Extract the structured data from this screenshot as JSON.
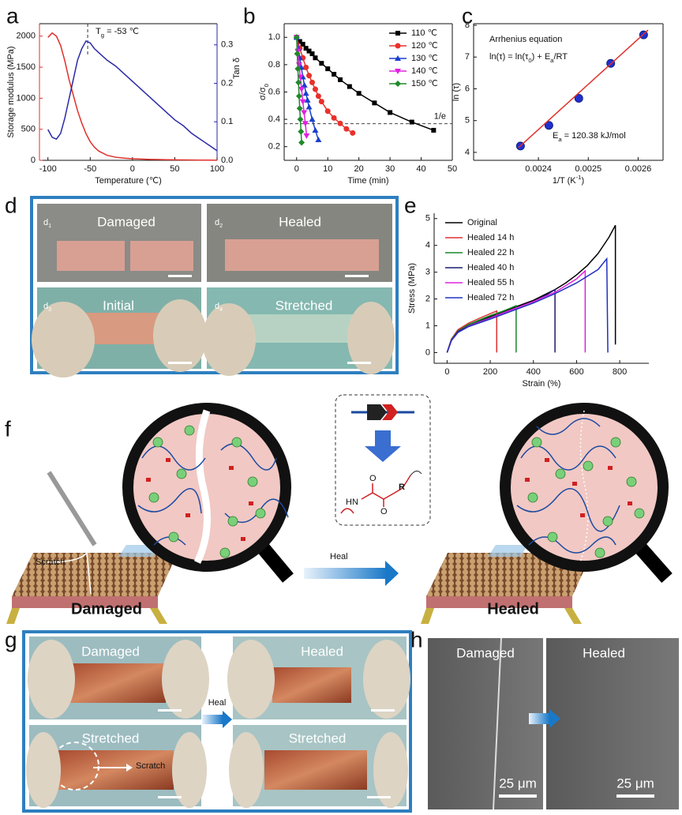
{
  "chart_data": [
    {
      "type": "line",
      "label": "a",
      "xlabel": "Temperature (℃)",
      "ylabel": "Storage modulus (MPa)",
      "y2label": "Tan δ",
      "x": [
        -100,
        -95,
        -90,
        -85,
        -80,
        -75,
        -70,
        -65,
        -60,
        -55,
        -50,
        -45,
        -40,
        -30,
        -20,
        -10,
        0,
        10,
        20,
        30,
        40,
        50,
        60,
        70,
        80,
        90,
        100
      ],
      "series": [
        {
          "color": "#e0302a",
          "values": [
            1980,
            2050,
            2000,
            1850,
            1600,
            1300,
            1050,
            800,
            600,
            430,
            300,
            210,
            150,
            80,
            50,
            35,
            25,
            20,
            15,
            12,
            10,
            8,
            6,
            5,
            4,
            3,
            2
          ]
        },
        {
          "color": "#2a2aa8",
          "axis": "y2",
          "values": [
            0.08,
            0.06,
            0.055,
            0.07,
            0.11,
            0.16,
            0.21,
            0.26,
            0.29,
            0.31,
            0.305,
            0.29,
            0.28,
            0.26,
            0.245,
            0.225,
            0.205,
            0.185,
            0.165,
            0.145,
            0.125,
            0.105,
            0.09,
            0.07,
            0.055,
            0.04,
            0.025
          ]
        }
      ],
      "xlim": [
        -110,
        100
      ],
      "xticks": [
        -100,
        -50,
        0,
        50,
        100
      ],
      "ylim": [
        0,
        2200
      ],
      "yticks": [
        0,
        500,
        1000,
        1500,
        2000
      ],
      "y2lim": [
        0,
        0.355
      ],
      "y2ticks": [
        {
          "value": 0,
          "label": "0.0"
        },
        0.1,
        0.2,
        0.3
      ],
      "annotation_x": -53,
      "annotation": [
        {
          "t": "T"
        },
        {
          "t": "g",
          "sub": true
        },
        {
          "t": " = -53 ℃"
        }
      ]
    },
    {
      "type": "line",
      "label": "b",
      "xlabel": "Time (min)",
      "ylabel": [
        {
          "t": "σ/σ"
        },
        {
          "t": "0",
          "sub": true
        }
      ],
      "legend": "upper right",
      "series": [
        {
          "name": "110 ℃",
          "color": "#000000",
          "marker": "square",
          "x": [
            0,
            1,
            2,
            3,
            4,
            5,
            6,
            8,
            10,
            12,
            14,
            17,
            20,
            25,
            30,
            37,
            44
          ],
          "values": [
            1.0,
            0.97,
            0.95,
            0.92,
            0.9,
            0.88,
            0.85,
            0.81,
            0.77,
            0.73,
            0.69,
            0.64,
            0.59,
            0.52,
            0.45,
            0.38,
            0.32
          ]
        },
        {
          "name": "120 ℃",
          "color": "#e8302a",
          "marker": "circle",
          "x": [
            0,
            1,
            2,
            3,
            4,
            5,
            6,
            7,
            8,
            10,
            12,
            14,
            16,
            18
          ],
          "values": [
            1.0,
            0.92,
            0.85,
            0.78,
            0.72,
            0.67,
            0.62,
            0.57,
            0.53,
            0.46,
            0.41,
            0.37,
            0.33,
            0.3
          ]
        },
        {
          "name": "130 ℃",
          "color": "#1a3fd0",
          "marker": "triangle",
          "x": [
            0,
            0.5,
            1,
            1.5,
            2,
            2.5,
            3,
            3.5,
            4,
            5,
            6,
            7
          ],
          "values": [
            1.0,
            0.92,
            0.85,
            0.78,
            0.71,
            0.65,
            0.59,
            0.54,
            0.49,
            0.4,
            0.32,
            0.25
          ]
        },
        {
          "name": "140 ℃",
          "color": "#e020e0",
          "marker": "triangle-down",
          "x": [
            0,
            0.4,
            0.8,
            1.2,
            1.6,
            2,
            2.4,
            2.8,
            3.2
          ],
          "values": [
            1.0,
            0.9,
            0.8,
            0.71,
            0.62,
            0.53,
            0.45,
            0.37,
            0.28
          ]
        },
        {
          "name": "150 ℃",
          "color": "#1f8a2a",
          "marker": "diamond",
          "x": [
            0,
            0.2,
            0.4,
            0.6,
            0.8,
            1.0,
            1.2,
            1.4,
            1.6
          ],
          "values": [
            1.0,
            0.88,
            0.77,
            0.67,
            0.57,
            0.48,
            0.4,
            0.31,
            0.23
          ]
        }
      ],
      "xlim": [
        -4,
        50
      ],
      "xticks": [
        0,
        10,
        20,
        30,
        40,
        50
      ],
      "ylim": [
        0.1,
        1.1
      ],
      "yticks": [
        0.2,
        0.4,
        0.6,
        0.8,
        {
          "value": 1,
          "label": "1.0"
        }
      ],
      "hline": {
        "value": 0.368,
        "label": "1/e"
      }
    },
    {
      "type": "line",
      "label": "c",
      "xlabel": [
        {
          "t": "1/T (K"
        },
        {
          "t": "-1",
          "sup": true
        },
        {
          "t": ")"
        }
      ],
      "ylabel": "ln (τ)",
      "series": [
        {
          "color": "#2030d0",
          "marker": "circle",
          "line": false,
          "x": [
            0.002364,
            0.002421,
            0.002481,
            0.002545,
            0.002611
          ],
          "values": [
            4.2,
            4.85,
            5.7,
            6.8,
            7.7
          ]
        },
        {
          "color": "#e0302a",
          "x": [
            0.00236,
            0.00262
          ],
          "values": [
            4.15,
            7.85
          ]
        }
      ],
      "xlim": [
        0.00227,
        0.00265
      ],
      "xticks": [
        0.0024,
        0.0025,
        0.0026
      ],
      "ylim": [
        3.75,
        8.05
      ],
      "yticks": [
        4,
        5,
        6,
        7,
        8
      ],
      "notes": [
        "Arrhenius equation",
        [
          {
            "t": "ln(τ) = ln(τ"
          },
          {
            "t": "0",
            "sub": true
          },
          {
            "t": ") + E"
          },
          {
            "t": "a",
            "sub": true
          },
          {
            "t": "/RT"
          }
        ],
        [
          {
            "t": "E"
          },
          {
            "t": "a",
            "sub": true
          },
          {
            "t": " = 120.38 kJ/mol"
          }
        ]
      ]
    },
    {
      "type": "line",
      "label": "e",
      "xlabel": "Strain (%)",
      "ylabel": "Stress (MPa)",
      "legend": "upper left",
      "series": [
        {
          "name": "Original",
          "color": "#000000",
          "x": [
            0,
            20,
            50,
            100,
            150,
            200,
            250,
            300,
            350,
            400,
            450,
            500,
            550,
            600,
            650,
            700,
            750,
            780,
            780
          ],
          "values": [
            0,
            0.5,
            0.8,
            1.05,
            1.2,
            1.35,
            1.5,
            1.65,
            1.8,
            1.95,
            2.15,
            2.35,
            2.6,
            2.9,
            3.25,
            3.7,
            4.3,
            4.75,
            0.3
          ]
        },
        {
          "name": "Healed 14 h",
          "color": "#e03030",
          "x": [
            0,
            20,
            50,
            100,
            150,
            200,
            230,
            230
          ],
          "values": [
            0,
            0.5,
            0.85,
            1.1,
            1.28,
            1.45,
            1.55,
            0
          ]
        },
        {
          "name": "Healed 22 h",
          "color": "#1a8a2a",
          "x": [
            0,
            20,
            50,
            100,
            150,
            200,
            250,
            300,
            320,
            320
          ],
          "values": [
            0,
            0.48,
            0.8,
            1.05,
            1.22,
            1.38,
            1.52,
            1.68,
            1.75,
            0
          ]
        },
        {
          "name": "Healed 40 h",
          "color": "#1a1a70",
          "x": [
            0,
            20,
            50,
            100,
            200,
            300,
            400,
            450,
            500,
            500
          ],
          "values": [
            0,
            0.45,
            0.78,
            1.0,
            1.3,
            1.6,
            1.9,
            2.1,
            2.35,
            0
          ]
        },
        {
          "name": "Healed 55 h",
          "color": "#e020e0",
          "x": [
            0,
            20,
            50,
            100,
            200,
            300,
            400,
            500,
            600,
            640,
            640
          ],
          "values": [
            0,
            0.45,
            0.75,
            0.98,
            1.28,
            1.6,
            1.9,
            2.25,
            2.75,
            3.05,
            0
          ]
        },
        {
          "name": "Healed 72 h",
          "color": "#2030c0",
          "x": [
            0,
            20,
            50,
            100,
            200,
            300,
            400,
            500,
            600,
            700,
            740,
            745
          ],
          "values": [
            0,
            0.45,
            0.75,
            0.97,
            1.25,
            1.55,
            1.85,
            2.2,
            2.6,
            3.1,
            3.5,
            0
          ]
        }
      ],
      "xlim": [
        -60,
        935
      ],
      "xticks": [
        0,
        200,
        400,
        600,
        800
      ],
      "ylim": [
        -0.4,
        5.2
      ],
      "yticks": [
        0,
        1,
        2,
        3,
        4,
        5
      ]
    }
  ],
  "panel_d": {
    "label": "d",
    "cells": [
      {
        "letter": "d",
        "index": "1",
        "caption": "Damaged"
      },
      {
        "letter": "d",
        "index": "2",
        "caption": "Healed"
      },
      {
        "letter": "d",
        "index": "3",
        "caption": "Initial"
      },
      {
        "letter": "d",
        "index": "4",
        "caption": "Stretched"
      }
    ]
  },
  "panel_f": {
    "label": "f",
    "scratch": "Scratch",
    "heal": "Heal",
    "damaged": "Damaged",
    "healed": "Healed",
    "chem": [
      "HN",
      "O",
      "O",
      "R"
    ]
  },
  "panel_g": {
    "label": "g",
    "cells": [
      "Damaged",
      "Healed",
      "Stretched",
      "Stretched"
    ],
    "heal": "Heal",
    "scratch": "Scratch"
  },
  "panel_h": {
    "label": "h",
    "cells": [
      {
        "caption": "Damaged",
        "scale": "25 μm"
      },
      {
        "caption": "Healed",
        "scale": "25 μm"
      }
    ]
  }
}
